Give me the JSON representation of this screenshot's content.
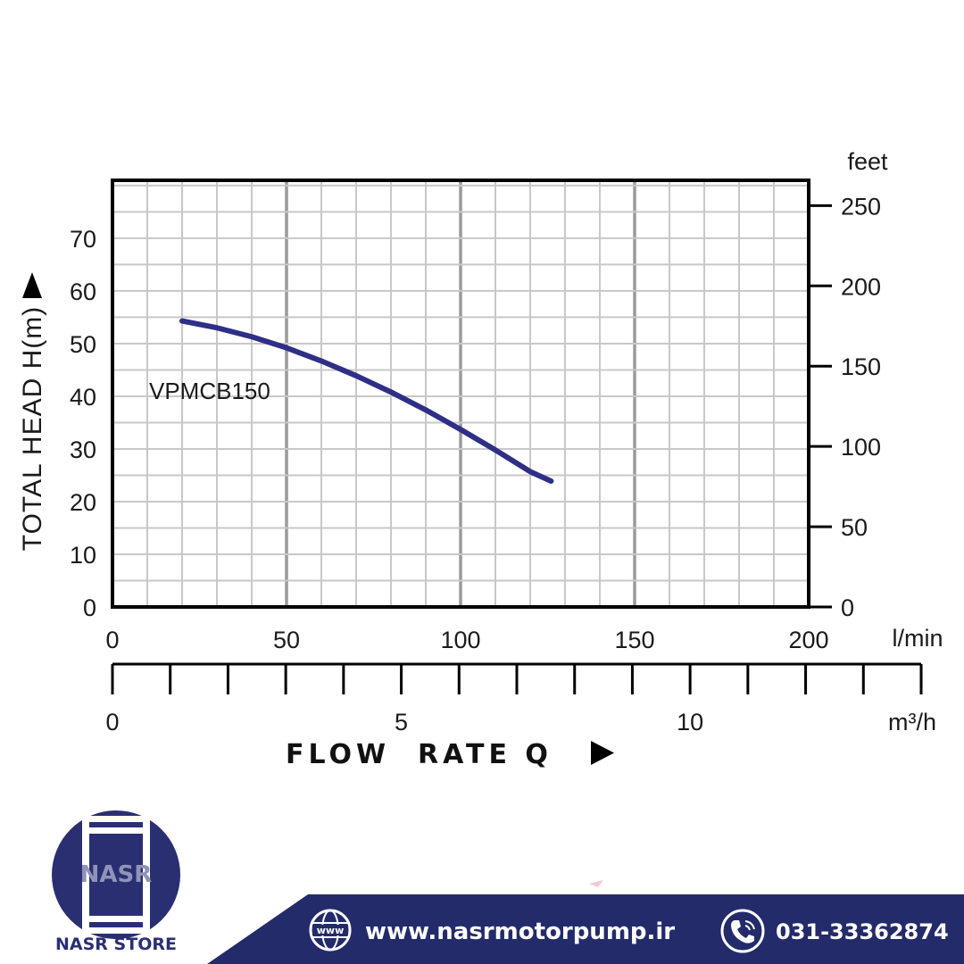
{
  "chart_data": {
    "type": "line",
    "title": "",
    "series": [
      {
        "name": "VPMCB150",
        "x": [
          20,
          30,
          40,
          50,
          60,
          70,
          80,
          90,
          100,
          110,
          120,
          126
        ],
        "y": [
          54.3,
          53.0,
          51.3,
          49.2,
          46.7,
          43.9,
          40.8,
          37.4,
          33.7,
          29.8,
          25.7,
          23.9
        ]
      }
    ],
    "xlabel": "FLOW  RATE Q",
    "ylabel": "TOTAL HEAD H(m)",
    "xlim": [
      0,
      200
    ],
    "ylim": [
      0,
      81
    ],
    "x_unit": "l/min",
    "x_ticks": [
      0,
      50,
      100,
      150,
      200
    ],
    "y_ticks": [
      0,
      10,
      20,
      30,
      40,
      50,
      60,
      70
    ],
    "y2_label": "feet",
    "y2_ticks": [
      0,
      50,
      100,
      150,
      200,
      250
    ],
    "x2_unit": "m³/h",
    "x2_ticks": [
      0,
      5,
      10
    ],
    "x2_lim": [
      0,
      14
    ],
    "grid": true,
    "colors": {
      "series": "#2e2f86",
      "grid": "#c8c8c8",
      "major_grid": "#9a9a9a",
      "frame": "#000000"
    }
  },
  "footer": {
    "brand_name": "NASR",
    "brand_label": "NASR STORE",
    "website": "www.nasrmotorpump.ir",
    "phone": "031-33362874",
    "globe_text": "www",
    "icons": {
      "website": "globe-icon",
      "phone": "phone-icon"
    },
    "colors": {
      "band": "#242b6a",
      "logo": "#2a2f72"
    }
  }
}
